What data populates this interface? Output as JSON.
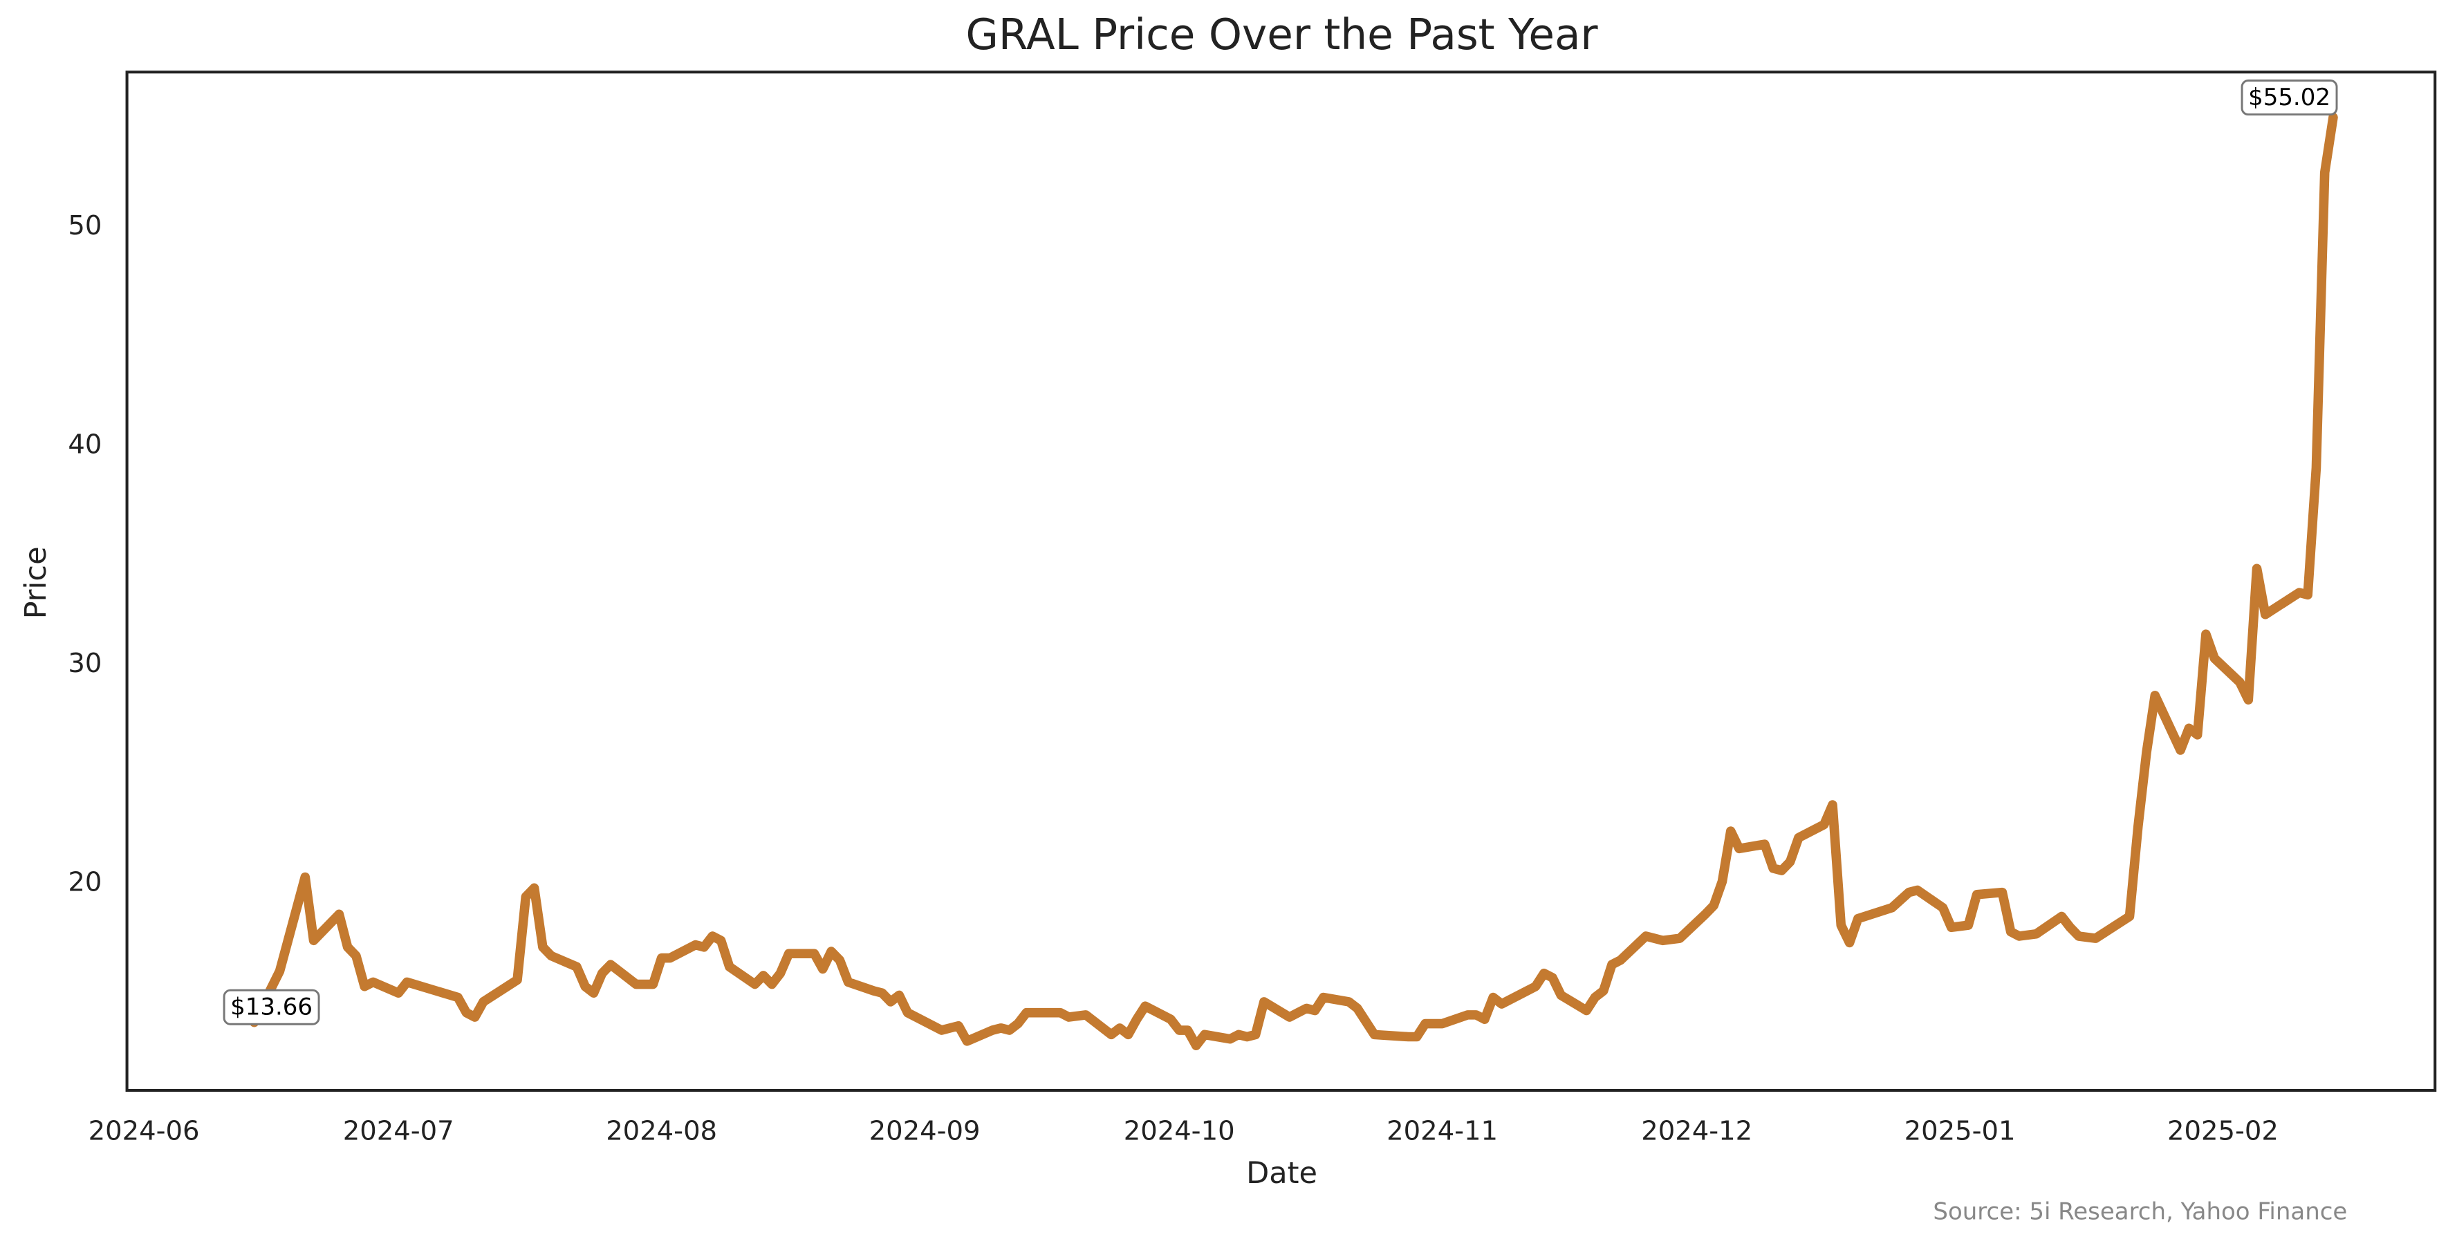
{
  "chart_data": {
    "type": "line",
    "title": "GRAL Price Over the Past Year",
    "x_label": "Date",
    "y_label": "Price",
    "source": "Source: 5i Research, Yahoo Finance",
    "color": "#c47a30",
    "x": [
      "2024-06-14",
      "2024-06-17",
      "2024-06-20",
      "2024-06-21",
      "2024-06-24",
      "2024-06-25",
      "2024-06-26",
      "2024-06-27",
      "2024-06-28",
      "2024-07-01",
      "2024-07-02",
      "2024-07-08",
      "2024-07-09",
      "2024-07-10",
      "2024-07-11",
      "2024-07-15",
      "2024-07-16",
      "2024-07-17",
      "2024-07-18",
      "2024-07-19",
      "2024-07-22",
      "2024-07-23",
      "2024-07-24",
      "2024-07-25",
      "2024-07-26",
      "2024-07-29",
      "2024-07-31",
      "2024-08-01",
      "2024-08-02",
      "2024-08-05",
      "2024-08-06",
      "2024-08-07",
      "2024-08-08",
      "2024-08-09",
      "2024-08-12",
      "2024-08-13",
      "2024-08-14",
      "2024-08-15",
      "2024-08-16",
      "2024-08-19",
      "2024-08-20",
      "2024-08-21",
      "2024-08-22",
      "2024-08-23",
      "2024-08-26",
      "2024-08-27",
      "2024-08-28",
      "2024-08-29",
      "2024-08-30",
      "2024-09-03",
      "2024-09-05",
      "2024-09-06",
      "2024-09-09",
      "2024-09-10",
      "2024-09-11",
      "2024-09-12",
      "2024-09-13",
      "2024-09-17",
      "2024-09-18",
      "2024-09-20",
      "2024-09-23",
      "2024-09-24",
      "2024-09-25",
      "2024-09-26",
      "2024-09-27",
      "2024-09-30",
      "2024-10-01",
      "2024-10-02",
      "2024-10-03",
      "2024-10-04",
      "2024-10-07",
      "2024-10-08",
      "2024-10-09",
      "2024-10-10",
      "2024-10-11",
      "2024-10-14",
      "2024-10-15",
      "2024-10-16",
      "2024-10-17",
      "2024-10-18",
      "2024-10-21",
      "2024-10-22",
      "2024-10-24",
      "2024-10-28",
      "2024-10-29",
      "2024-10-30",
      "2024-11-01",
      "2024-11-04",
      "2024-11-05",
      "2024-11-06",
      "2024-11-07",
      "2024-11-08",
      "2024-11-11",
      "2024-11-12",
      "2024-11-13",
      "2024-11-14",
      "2024-11-15",
      "2024-11-18",
      "2024-11-19",
      "2024-11-20",
      "2024-11-21",
      "2024-11-22",
      "2024-11-25",
      "2024-11-26",
      "2024-11-27",
      "2024-11-29",
      "2024-12-02",
      "2024-12-03",
      "2024-12-04",
      "2024-12-05",
      "2024-12-06",
      "2024-12-09",
      "2024-12-10",
      "2024-12-11",
      "2024-12-12",
      "2024-12-13",
      "2024-12-16",
      "2024-12-17",
      "2024-12-18",
      "2024-12-19",
      "2024-12-20",
      "2024-12-24",
      "2024-12-26",
      "2024-12-27",
      "2024-12-30",
      "2024-12-31",
      "2025-01-02",
      "2025-01-03",
      "2025-01-06",
      "2025-01-07",
      "2025-01-08",
      "2025-01-10",
      "2025-01-13",
      "2025-01-14",
      "2025-01-15",
      "2025-01-17",
      "2025-01-21",
      "2025-01-22",
      "2025-01-23",
      "2025-01-24",
      "2025-01-27",
      "2025-01-28",
      "2025-01-29",
      "2025-01-30",
      "2025-01-31",
      "2025-02-03",
      "2025-02-04",
      "2025-02-05",
      "2025-02-06",
      "2025-02-10",
      "2025-02-11",
      "2025-02-12",
      "2025-02-13",
      "2025-02-14"
    ],
    "values": [
      13.66,
      16.0,
      20.3,
      17.4,
      18.6,
      17.1,
      16.7,
      15.3,
      15.5,
      15.0,
      15.5,
      14.8,
      14.1,
      13.9,
      14.6,
      15.6,
      19.4,
      19.8,
      17.1,
      16.7,
      16.2,
      15.3,
      15.0,
      15.9,
      16.3,
      15.4,
      15.4,
      16.6,
      16.6,
      17.2,
      17.1,
      17.6,
      17.4,
      16.2,
      15.4,
      15.8,
      15.4,
      15.9,
      16.8,
      16.8,
      16.1,
      16.9,
      16.5,
      15.5,
      15.1,
      15.0,
      14.6,
      14.9,
      14.1,
      13.3,
      13.5,
      12.8,
      13.3,
      13.4,
      13.3,
      13.6,
      14.1,
      14.1,
      13.9,
      14.0,
      13.1,
      13.4,
      13.1,
      13.8,
      14.4,
      13.8,
      13.3,
      13.3,
      12.6,
      13.1,
      12.9,
      13.1,
      13.0,
      13.1,
      14.6,
      13.9,
      14.1,
      14.3,
      14.2,
      14.8,
      14.6,
      14.3,
      13.1,
      13.0,
      13.0,
      13.6,
      13.6,
      14.0,
      14.0,
      13.8,
      14.8,
      14.5,
      15.1,
      15.3,
      15.9,
      15.7,
      14.9,
      14.2,
      14.8,
      15.1,
      16.3,
      16.5,
      17.6,
      17.5,
      17.4,
      17.5,
      18.6,
      19.0,
      20.1,
      22.4,
      21.6,
      21.8,
      20.7,
      20.6,
      21.0,
      22.1,
      22.7,
      23.6,
      18.1,
      17.3,
      18.4,
      18.9,
      19.6,
      19.7,
      18.9,
      18.0,
      18.1,
      19.5,
      19.6,
      17.8,
      17.6,
      17.7,
      18.5,
      18.0,
      17.6,
      17.5,
      18.5,
      22.6,
      26.0,
      28.6,
      26.1,
      27.1,
      26.8,
      31.4,
      30.3,
      29.2,
      28.4,
      34.4,
      32.3,
      33.3,
      33.2,
      39.0,
      52.5,
      55.02
    ],
    "value_labels": [
      "$13.66",
      null,
      null,
      null,
      null,
      null,
      null,
      null,
      null,
      null,
      null,
      null,
      null,
      null,
      null,
      null,
      null,
      null,
      null,
      null,
      null,
      null,
      null,
      null,
      null,
      null,
      null,
      null,
      null,
      null,
      null,
      null,
      null,
      null,
      null,
      null,
      null,
      null,
      null,
      null,
      null,
      null,
      null,
      null,
      null,
      null,
      null,
      null,
      null,
      null,
      null,
      null,
      null,
      null,
      null,
      null,
      null,
      null,
      null,
      null,
      null,
      null,
      null,
      null,
      null,
      null,
      null,
      null,
      null,
      null,
      null,
      null,
      null,
      null,
      null,
      null,
      null,
      null,
      null,
      null,
      null,
      null,
      null,
      null,
      null,
      null,
      null,
      null,
      null,
      null,
      null,
      null,
      null,
      null,
      null,
      null,
      null,
      null,
      null,
      null,
      null,
      null,
      null,
      null,
      null,
      null,
      null,
      null,
      null,
      null,
      null,
      null,
      null,
      null,
      null,
      null,
      null,
      null,
      null,
      null,
      null,
      null,
      null,
      null,
      null,
      null,
      null,
      null,
      null,
      null,
      null,
      null,
      null,
      null,
      null,
      null,
      null,
      null,
      null,
      null,
      null,
      null,
      null,
      null,
      null,
      null,
      null,
      null,
      null,
      null,
      null,
      null,
      null,
      "$55.02"
    ],
    "xlim": [
      "2024-05-30",
      "2025-02-26"
    ],
    "xticks": [
      {
        "value": "2024-06-01",
        "label": "2024-06"
      },
      {
        "value": "2024-07-01",
        "label": "2024-07"
      },
      {
        "value": "2024-08-01",
        "label": "2024-08"
      },
      {
        "value": "2024-09-01",
        "label": "2024-09"
      },
      {
        "value": "2024-10-01",
        "label": "2024-10"
      },
      {
        "value": "2024-11-01",
        "label": "2024-11"
      },
      {
        "value": "2024-12-01",
        "label": "2024-12"
      },
      {
        "value": "2025-01-01",
        "label": "2025-01"
      },
      {
        "value": "2025-02-01",
        "label": "2025-02"
      }
    ],
    "ylim": [
      10.55,
      57.09
    ],
    "yticks": [
      20,
      30,
      40,
      50
    ],
    "grid": false
  }
}
